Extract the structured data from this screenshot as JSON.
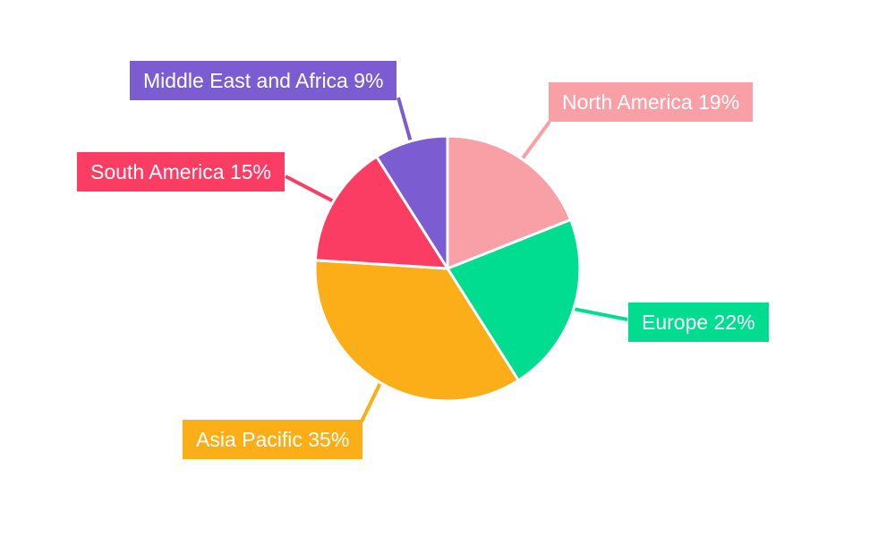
{
  "chart_data": {
    "type": "pie",
    "title": "",
    "categories": [
      "North America",
      "Europe",
      "Asia Pacific",
      "South America",
      "Middle East and Africa"
    ],
    "values": [
      19,
      22,
      35,
      15,
      9
    ],
    "unit": "%",
    "colors": [
      "#F8A0A6",
      "#00DD90",
      "#FBAE17",
      "#FB3D64",
      "#7B5DD1"
    ],
    "callout_labels": [
      "North America 19%",
      "Europe 22%",
      "Asia Pacific 35%",
      "South America 15%",
      "Middle East and Africa 9%"
    ],
    "start_angle_deg": -90,
    "direction": "clockwise",
    "legend_position": "callouts",
    "background": "#FFFFFF",
    "label_text_color": "#FFFFFF"
  }
}
